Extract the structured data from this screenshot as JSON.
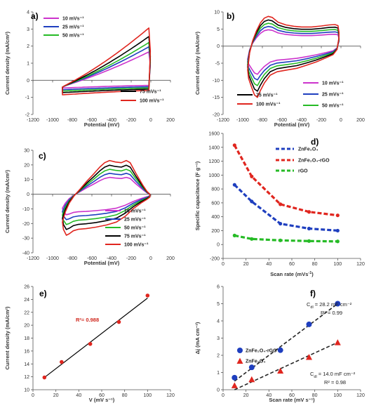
{
  "colors": {
    "magenta": "#cc33cc",
    "blue": "#1f3fbf",
    "green": "#26bb26",
    "black": "#000000",
    "red": "#e0261f",
    "fitRed": "#d0281e"
  },
  "chart_data": [
    {
      "id": "a",
      "panel_label": "a)",
      "type": "line",
      "xlabel": "Potential (mV)",
      "ylabel": "Current density (mA/cm²)",
      "xlim": [
        -1200,
        200
      ],
      "ylim": [
        -2,
        4
      ],
      "xticks": [
        "-1200",
        "-1000",
        "-800",
        "-600",
        "-400",
        "-200",
        "0",
        "200"
      ],
      "yticks": [
        "-2",
        "-1",
        "0",
        "1",
        "2",
        "3",
        "4"
      ],
      "series": [
        {
          "name": "10 mVs-1",
          "legend": "10 mVs⁻¹",
          "color": "magenta",
          "x_range": [
            -900,
            -20
          ],
          "anodic_end": 1.45,
          "cathodic_start": -0.45,
          "cathodic_end": -0.3
        },
        {
          "name": "25 mVs-1",
          "legend": "25 mVs⁻¹",
          "color": "blue",
          "x_range": [
            -900,
            -20
          ],
          "anodic_end": 1.75,
          "cathodic_start": -0.55,
          "cathodic_end": -0.38
        },
        {
          "name": "50 mVs-1",
          "legend": "50 mVs⁻¹",
          "color": "green",
          "x_range": [
            -900,
            -20
          ],
          "anodic_end": 2.0,
          "cathodic_start": -0.63,
          "cathodic_end": -0.45
        },
        {
          "name": "75 mVs-1",
          "legend": "75 mVs⁻¹",
          "color": "black",
          "x_range": [
            -900,
            -20
          ],
          "anodic_end": 2.35,
          "cathodic_start": -0.72,
          "cathodic_end": -0.52
        },
        {
          "name": "100 mVs-1",
          "legend": "100 mVs⁻¹",
          "color": "red",
          "x_range": [
            -900,
            -20
          ],
          "anodic_end": 2.85,
          "cathodic_start": -0.85,
          "cathodic_end": -0.6
        }
      ]
    },
    {
      "id": "b",
      "panel_label": "b)",
      "type": "line",
      "xlabel": "Potential (mV)",
      "ylabel": "Current density (mA/cm²)",
      "xlim": [
        -1200,
        200
      ],
      "ylim": [
        -20,
        10
      ],
      "xticks": [
        "-1200",
        "-1000",
        "-800",
        "-600",
        "-400",
        "-200",
        "0",
        "200"
      ],
      "yticks": [
        "-20",
        "-15",
        "-10",
        "-5",
        "0",
        "5",
        "10"
      ],
      "series": [
        {
          "name": "10 mVs-1",
          "legend": "10 mVs⁻¹",
          "color": "magenta",
          "x_range": [
            -950,
            -20
          ],
          "scale": 0.55
        },
        {
          "name": "25 mVs-1",
          "legend": "25 mVs⁻¹",
          "color": "blue",
          "x_range": [
            -950,
            -20
          ],
          "scale": 0.66
        },
        {
          "name": "50 mVs-1",
          "legend": "50 mVs⁻¹",
          "color": "green",
          "x_range": [
            -950,
            -20
          ],
          "scale": 0.77
        },
        {
          "name": "75 mVs-1",
          "legend": "75 mVs⁻¹",
          "color": "black",
          "x_range": [
            -950,
            -20
          ],
          "scale": 0.88
        },
        {
          "name": "100 mVs-1",
          "legend": "100 mVs⁻¹",
          "color": "red",
          "x_range": [
            -950,
            -20
          ],
          "scale": 1.0
        }
      ]
    },
    {
      "id": "c",
      "panel_label": "c)",
      "type": "line",
      "xlabel": "Potential (mV)",
      "ylabel": "Current density (mA/cm²)",
      "xlim": [
        -1200,
        200
      ],
      "ylim": [
        -40,
        30
      ],
      "xticks": [
        "-1200",
        "-1000",
        "-800",
        "-600",
        "-400",
        "-200",
        "0",
        "200"
      ],
      "yticks": [
        "-40",
        "-30",
        "-20",
        "-10",
        "0",
        "10",
        "20",
        "30"
      ],
      "series": [
        {
          "name": "10 mVs-1",
          "legend": "10 mVs⁻¹",
          "color": "magenta",
          "x_range": [
            -900,
            -10
          ],
          "scale": 0.5
        },
        {
          "name": "25 mVs-1",
          "legend": "25 mVs⁻¹",
          "color": "blue",
          "x_range": [
            -900,
            -10
          ],
          "scale": 0.62
        },
        {
          "name": "50 mVs-1",
          "legend": "50 mVs⁻¹",
          "color": "green",
          "x_range": [
            -900,
            -10
          ],
          "scale": 0.74
        },
        {
          "name": "75 mVs-1",
          "legend": "75 mVs⁻¹",
          "color": "black",
          "x_range": [
            -900,
            -10
          ],
          "scale": 0.86
        },
        {
          "name": "100 mVs-1",
          "legend": "100 mVs⁻¹",
          "color": "red",
          "x_range": [
            -900,
            -10
          ],
          "scale": 1.0
        }
      ]
    },
    {
      "id": "d",
      "panel_label": "d)",
      "type": "line",
      "xlabel": "Scan rate (mVs-1)",
      "ylabel": "Specific capacitance (F g⁻¹)",
      "xlim": [
        0,
        120
      ],
      "ylim": [
        -200,
        1600
      ],
      "xticks": [
        "0",
        "20",
        "40",
        "60",
        "80",
        "100",
        "120"
      ],
      "yticks": [
        "-200",
        "0",
        "200",
        "400",
        "600",
        "800",
        "1000",
        "1200",
        "1400",
        "1600"
      ],
      "x": [
        10,
        25,
        50,
        75,
        100
      ],
      "series": [
        {
          "name": "ZnFe2O4",
          "legend": "ZnFe₂O₄",
          "color": "blue",
          "values": [
            860,
            620,
            300,
            230,
            200
          ]
        },
        {
          "name": "ZnFe2O4-rGO",
          "legend": "ZnFe₂O₄-rGO",
          "color": "red",
          "values": [
            1430,
            980,
            580,
            470,
            420
          ]
        },
        {
          "name": "rGO",
          "legend": "rGO",
          "color": "green",
          "values": [
            130,
            80,
            60,
            50,
            45
          ]
        }
      ]
    },
    {
      "id": "e",
      "panel_label": "e)",
      "type": "scatter",
      "xlabel": "V (mV s⁻¹)",
      "ylabel": "Current density (mA/cm²)",
      "xlim": [
        0,
        120
      ],
      "ylim": [
        10,
        26
      ],
      "xticks": [
        "0",
        "20",
        "40",
        "60",
        "80",
        "100",
        "120"
      ],
      "yticks": [
        "10",
        "12",
        "14",
        "16",
        "18",
        "20",
        "22",
        "24",
        "26"
      ],
      "points": {
        "x": [
          10,
          25,
          50,
          75,
          100
        ],
        "y": [
          11.9,
          14.3,
          17.1,
          20.5,
          24.6
        ]
      },
      "fit": {
        "x": [
          10,
          100
        ],
        "y": [
          11.9,
          24.2
        ]
      },
      "annotation": "R²= 0.988"
    },
    {
      "id": "f",
      "panel_label": "f)",
      "type": "scatter",
      "xlabel": "Scan rate (mV s⁻¹)",
      "ylabel": "Δj (mA cm⁻²)",
      "xlim": [
        0,
        120
      ],
      "ylim": [
        0,
        6
      ],
      "xticks": [
        "0",
        "20",
        "40",
        "60",
        "80",
        "100",
        "120"
      ],
      "yticks": [
        "0",
        "1",
        "2",
        "3",
        "4",
        "5",
        "6"
      ],
      "series": [
        {
          "name": "ZnFe2O4-rGO",
          "legend": "ZnFe₂O₄-rGO",
          "marker": "circle",
          "color": "blue",
          "x": [
            10,
            25,
            50,
            75,
            100
          ],
          "y": [
            0.7,
            1.3,
            2.3,
            3.8,
            5.0
          ],
          "fit": {
            "x": [
              10,
              100
            ],
            "y": [
              0.5,
              5.0
            ]
          }
        },
        {
          "name": "ZnFe2O4",
          "legend": "ZnFe₂O₄",
          "marker": "triangle",
          "color": "red",
          "x": [
            10,
            25,
            50,
            75,
            100
          ],
          "y": [
            0.25,
            0.6,
            1.1,
            1.9,
            2.75
          ],
          "fit": {
            "x": [
              10,
              100
            ],
            "y": [
              0.0,
              2.75
            ]
          }
        }
      ],
      "annotations": {
        "cdl_rgo_prefix": "C",
        "cdl_rgo_sub": "dl",
        "cdl_rgo_value": " = 28.2 mF cm⁻²",
        "r2_rgo": "R² = 0.99",
        "cdl_znfe_prefix": "C",
        "cdl_znfe_sub": "dl",
        "cdl_znfe_value": " = 14.0 mF cm⁻²",
        "r2_znfe": "R² = 0.98"
      }
    }
  ]
}
